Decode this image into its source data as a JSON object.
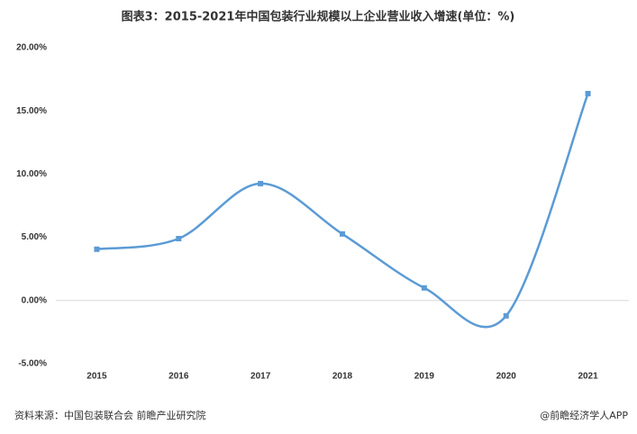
{
  "chart_data": {
    "type": "line",
    "title": "图表3：2015-2021年中国包装行业规模以上企业营业收入增速(单位：%)",
    "categories": [
      "2015",
      "2016",
      "2017",
      "2018",
      "2019",
      "2020",
      "2021"
    ],
    "series": [
      {
        "name": "营业收入增速",
        "color": "#5b9bd5",
        "values": [
          4.06,
          4.9,
          9.25,
          5.27,
          1.0,
          -1.21,
          16.37
        ]
      }
    ],
    "ylim": [
      -5,
      20
    ],
    "yticks": [
      {
        "value": -5,
        "label": "-5.00%"
      },
      {
        "value": 0,
        "label": "0.00%"
      },
      {
        "value": 5,
        "label": "5.00%"
      },
      {
        "value": 10,
        "label": "10.00%"
      },
      {
        "value": 15,
        "label": "15.00%"
      },
      {
        "value": 20,
        "label": "20.00%"
      }
    ],
    "grid": false,
    "smooth": true,
    "source": "资料来源：中国包装联合会 前瞻产业研究院",
    "credit": "@前瞻经济学人APP"
  }
}
